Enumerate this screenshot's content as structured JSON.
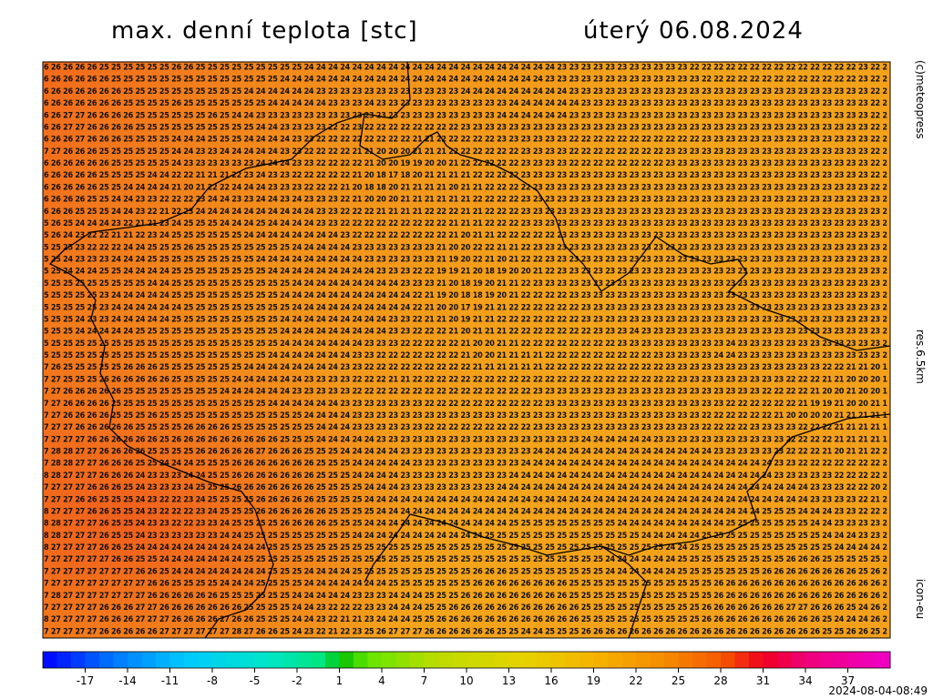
{
  "header": {
    "title": "max. denní teplota [stc]",
    "date": "úterý 06.08.2024"
  },
  "side_labels": [
    "(c)meteopress",
    "res.6.5km",
    "icon-eu"
  ],
  "footer": "2024-08-04-08:49",
  "grid_rows": [
    "6 26 26 26 26 25 25 25 25 25 25 26 26 25 25 25 25 25 25 25 25 25 24 24 24 24 24 24 24 24 24 24 24 24 24 24 24 24 24 24 24 24 24 23 23 23 23 23 23 23 23 23 23 23 22 22 22 22 22 22 22 22 22 22 22 22 22 22 23 22 2",
    "6 26 26 26 26 26 25 25 25 25 25 25 25 25 25 25 25 25 25 25 24 24 24 24 24 24 24 24 24 24 24 24 24 24 24 24 24 24 24 24 24 24 23 23 23 23 23 23 23 23 23 23 23 23 23 22 22 22 22 22 22 22 22 22 22 22 22 22 23 22 2",
    "6 26 26 26 26 26 26 25 25 25 25 25 25 25 25 25 25 24 24 24 24 24 24 23 23 23 23 23 23 23 23 23 23 23 23 24 24 24 24 24 24 24 24 24 23 23 23 23 23 23 23 23 23 23 23 23 23 23 23 23 23 23 23 23 23 23 23 23 23 22 2",
    "6 26 26 26 26 26 26 25 25 25 25 26 25 25 25 25 25 25 25 24 24 24 24 24 23 23 23 24 23 23 23 23 23 23 23 23 23 23 23 24 24 24 24 24 24 23 23 23 23 23 23 23 23 23 23 23 23 23 23 23 23 23 23 23 23 23 23 23 23 22 2",
    "6 26 27 27 26 26 26 26 25 25 25 25 25 25 26 25 24 24 23 23 23 23 23 23 23 23 23 23 23 23 23 23 23 23 23 23 23 23 24 24 24 24 24 24 23 23 23 23 23 23 23 23 23 23 23 23 23 23 23 23 23 23 23 23 23 23 23 23 23 22 2",
    "6 26 27 27 26 26 26 26 25 25 25 25 25 25 25 25 25 25 24 24 23 23 23 23 22 22 23 22 22 22 22 22 22 22 22 23 23 23 23 23 23 23 23 23 23 23 23 23 23 23 23 23 23 23 23 23 23 23 23 23 23 23 23 23 23 23 23 23 23 22 2",
    "6 26 26 27 26 26 26 25 25 25 25 24 24 24 25 25 25 24 24 24 24 23 23 22 22 22 22 22 22 22 22 21 21 22 22 22 22 22 23 23 23 23 23 23 22 22 22 22 22 22 22 22 22 22 22 23 23 23 23 23 23 23 23 23 23 23 23 23 23 22 2",
    "7 27 26 26 26 25 25 25 25 25 25 24 24 23 23 24 24 24 24 24 23 23 22 22 22 22 21 21 20 20 20 21 21 21 22 22 22 22 22 22 23 23 23 23 22 22 22 22 22 22 22 22 23 23 23 23 23 23 23 23 23 23 23 23 23 23 23 23 23 22 2",
    "6 26 26 26 26 26 25 25 25 25 25 24 23 23 23 23 23 23 24 24 24 23 23 22 22 22 22 21 20 20 19 19 20 20 21 22 22 22 22 22 23 23 23 23 22 22 22 22 22 22 22 22 23 23 23 23 23 23 23 23 23 23 23 23 23 23 23 23 23 22 2",
    "6 26 26 26 26 25 25 25 25 24 24 22 22 21 21 21 22 23 24 23 23 22 22 22 22 22 21 20 18 17 18 20 21 21 21 21 22 22 22 22 23 23 23 23 23 23 23 23 23 23 23 23 23 23 23 23 23 23 23 23 23 23 23 23 23 23 23 23 23 22 2",
    "6 26 26 26 26 25 25 24 24 24 24 21 20 21 22 22 24 24 24 23 23 23 22 22 22 21 20 18 18 20 21 21 21 21 20 21 21 22 22 22 22 23 23 23 23 23 23 23 23 23 23 23 23 23 23 23 23 23 23 23 23 23 23 23 23 23 23 23 23 22 2",
    "6 26 26 26 25 25 24 24 23 23 22 22 22 23 24 24 23 23 24 24 23 24 23 23 23 22 21 20 20 20 21 21 21 21 21 21 22 22 22 22 23 23 23 23 23 23 23 23 23 23 23 23 23 23 23 23 23 23 23 23 23 23 23 23 23 23 23 23 23 23 2",
    "6 26 26 25 25 25 24 24 23 22 21 22 23 24 24 24 24 24 24 24 24 24 24 23 23 22 22 22 21 21 21 21 22 22 22 21 21 22 22 22 23 23 23 23 23 23 23 23 23 23 23 23 23 23 23 23 23 23 23 23 23 23 23 23 23 23 23 23 23 23 2",
    "5 26 25 24 24 24 23 22 21 21 23 24 25 25 25 24 24 24 25 24 24 24 24 23 23 22 22 22 22 22 22 22 22 22 21 21 21 22 22 22 23 23 23 23 23 23 23 23 23 23 23 23 23 23 23 23 23 23 23 23 23 23 23 23 23 23 23 23 23 23 2",
    "5 26 24 23 22 22 21 21 22 23 24 25 25 25 25 25 25 24 24 24 24 24 24 24 24 23 22 22 22 22 22 22 22 22 21 20 21 21 22 22 22 22 22 23 23 23 23 23 23 23 23 23 23 23 23 23 23 23 23 23 23 23 23 23 23 23 23 23 23 23 2",
    "5 25 25 23 22 22 22 24 24 25 25 25 26 25 25 25 25 25 25 25 25 24 24 24 24 24 23 23 23 23 23 23 23 21 20 20 22 22 21 21 22 23 23 23 23 23 23 23 23 23 23 23 23 23 23 23 23 23 23 23 23 23 23 23 23 23 23 23 23 23 2",
    "5 25 24 23 23 23 24 24 24 25 25 25 25 25 25 25 25 25 24 24 24 24 24 24 24 24 24 23 23 23 23 23 23 21 19 20 22 21 20 21 22 22 23 23 23 23 23 23 23 23 23 23 23 23 23 23 23 23 23 23 23 23 23 23 23 23 23 23 23 23 2",
    "5 25 24 24 24 25 25 24 24 24 24 25 25 25 25 25 25 25 25 24 24 24 24 24 24 24 24 24 23 23 23 22 22 19 19 21 20 18 19 20 20 21 22 23 23 23 23 23 23 23 23 23 23 23 23 23 23 23 23 23 23 23 23 23 23 23 23 23 23 23 2",
    "5 25 25 25 25 25 25 25 25 24 24 25 25 25 25 25 25 25 25 25 25 24 24 24 24 24 24 24 24 24 23 23 23 21 20 18 19 20 21 21 22 23 23 23 23 23 23 23 23 23 23 23 23 23 23 23 23 23 23 23 23 23 23 23 23 23 23 23 23 23 2",
    "5 25 25 25 25 23 24 24 24 24 24 25 25 25 25 25 25 25 25 25 24 24 24 24 24 24 24 24 24 24 24 22 21 19 20 18 18 19 20 21 22 22 22 22 23 23 23 23 23 23 23 23 23 23 23 23 23 23 23 23 23 23 23 23 23 23 23 23 23 23 2",
    "5 25 25 25 25 23 24 24 24 24 24 24 25 25 25 25 25 25 25 25 25 24 24 24 24 24 24 24 24 24 24 22 21 20 20 17 19 21 21 22 22 22 22 22 22 23 23 23 23 23 23 23 23 23 23 23 23 23 23 23 23 23 23 23 23 23 23 23 23 23 2",
    "5 25 25 24 23 23 24 24 24 24 24 25 25 25 25 25 25 25 25 25 24 24 24 24 24 24 24 24 24 23 23 22 21 21 20 19 21 21 22 22 22 22 22 22 22 23 23 23 23 23 23 23 23 23 23 23 23 23 23 23 23 23 23 23 23 23 23 23 23 23 2",
    "5 25 25 24 24 24 24 24 25 25 25 25 25 25 25 25 25 25 25 25 24 24 24 24 24 24 24 24 24 23 23 22 22 22 21 20 21 21 21 22 22 22 22 22 22 22 23 23 23 24 23 23 23 23 23 23 23 23 23 23 23 23 23 23 23 23 23 23 23 23 2",
    "5 25 25 25 25 25 25 25 25 25 25 25 25 25 25 25 25 25 25 25 24 24 24 24 24 24 24 23 23 23 22 22 22 22 22 21 20 20 21 21 22 22 22 22 22 22 22 22 23 23 23 23 23 23 23 23 23 24 23 23 23 23 23 23 23 23 23 23 23 23 2",
    "5 25 25 25 25 25 25 25 25 25 25 25 25 25 25 25 25 25 25 24 24 24 24 24 24 24 23 23 22 22 22 22 22 22 22 21 20 20 21 21 21 21 22 22 22 22 22 22 22 22 22 23 23 23 23 23 24 24 23 23 23 23 23 23 23 23 23 23 23 23 2",
    "7 26 25 25 25 25 25 26 26 26 25 25 25 25 25 25 25 24 24 24 24 24 24 24 24 23 23 22 22 22 22 22 22 22 22 22 21 21 21 21 21 21 22 22 22 22 22 22 22 22 22 22 23 23 23 23 23 23 23 23 23 23 23 23 23 22 22 21 21 20 1",
    "7 27 25 25 25 26 26 26 26 26 26 25 25 25 25 25 24 24 24 24 24 24 23 23 23 23 22 22 22 21 21 22 22 22 22 22 22 22 22 22 22 22 22 22 22 22 22 22 22 22 22 22 22 23 23 23 23 23 23 23 23 23 22 22 22 21 21 20 20 20 1",
    "7 27 26 26 26 26 26 25 25 25 25 25 25 25 25 24 24 24 24 24 24 23 23 23 23 23 22 22 22 22 22 22 22 22 22 22 22 22 22 22 22 23 23 23 23 23 23 23 23 23 23 23 23 23 23 23 23 23 23 23 22 22 22 22 21 20 20 21 20 20 1",
    "7 27 26 26 26 26 25 25 25 25 25 25 25 25 25 25 25 25 25 24 24 24 24 24 24 23 23 23 23 23 23 23 22 22 22 22 22 22 22 22 22 22 23 23 23 23 23 23 23 23 23 23 23 23 23 23 23 22 22 22 22 22 22 21 19 19 21 20 20 21 1",
    "7 27 26 26 26 26 25 25 25 26 25 25 25 25 25 25 25 25 25 25 25 25 24 24 24 24 23 23 23 23 23 23 23 23 23 23 23 23 23 23 23 23 23 23 23 23 23 23 23 23 23 23 23 23 23 22 22 22 22 22 22 21 20 20 20 20 21 21 21 21 1",
    "7 27 27 26 26 26 26 26 25 25 25 25 26 26 26 26 25 25 25 25 25 25 25 24 24 24 23 23 23 23 23 23 22 22 22 22 22 22 22 22 22 23 23 23 23 23 23 23 23 23 23 23 23 23 23 22 22 22 22 23 23 23 23 22 22 22 21 21 21 21 1",
    "7 27 27 27 26 26 26 26 26 26 25 26 26 26 26 26 26 26 26 26 25 25 25 24 24 24 24 24 23 23 23 23 23 23 23 23 23 23 23 23 23 23 23 23 23 24 24 24 24 24 24 23 23 23 23 23 23 23 23 23 23 23 22 22 22 22 21 21 21 21 1",
    "7 28 28 27 27 26 26 26 26 25 25 25 25 26 26 26 26 26 27 26 26 26 25 25 25 24 24 24 24 24 23 23 23 23 23 23 23 23 23 23 23 24 24 24 24 24 24 24 24 24 24 24 24 24 24 24 23 23 23 23 23 23 22 22 22 21 20 21 21 22 2",
    "7 28 28 27 27 26 26 26 25 25 24 24 24 25 25 25 26 26 26 26 26 26 26 25 25 25 24 24 24 24 24 23 23 23 23 23 23 23 23 23 24 24 24 24 24 24 24 24 24 24 24 24 24 24 24 24 24 24 24 24 24 23 23 22 22 22 22 22 22 22 2",
    "8 28 27 27 27 26 26 26 24 23 23 23 24 24 25 25 26 26 26 26 26 26 26 25 25 25 24 24 24 24 23 23 23 23 23 23 23 23 23 24 24 24 24 24 24 24 24 24 24 24 24 24 24 24 24 24 24 24 24 24 24 23 23 23 23 23 22 22 22 22 2",
    "7 27 27 27 26 26 26 25 24 23 23 23 24 25 25 25 26 26 26 26 26 26 26 25 25 25 25 24 24 24 23 23 23 23 23 23 23 23 24 24 24 24 24 24 24 24 24 24 24 24 24 24 24 24 24 24 24 24 24 24 24 24 24 24 23 23 23 22 22 20 2",
    "7 27 27 26 26 25 25 25 24 23 22 22 23 24 25 25 25 25 26 26 26 26 26 25 25 25 25 24 24 24 24 24 24 24 24 24 24 24 24 24 24 24 24 24 24 24 24 24 24 24 24 24 24 24 24 24 24 24 24 24 24 24 24 24 23 23 23 23 22 21 2",
    "8 27 27 27 26 26 25 25 24 23 22 22 22 23 24 25 25 25 26 26 26 26 26 26 25 25 25 25 24 24 24 24 24 24 24 24 24 24 24 24 24 24 24 24 24 24 24 24 24 24 24 24 24 24 24 24 24 24 24 24 25 25 25 24 24 24 23 23 22 22 2",
    "8 28 27 27 27 26 25 25 24 23 23 22 22 23 23 24 25 25 25 25 26 26 26 26 25 25 25 24 24 24 24 24 24 24 24 24 24 24 24 25 25 25 25 25 25 25 25 25 24 24 24 24 24 24 24 24 24 25 25 25 25 25 25 25 24 24 23 23 23 23 2",
    "8 28 27 27 27 26 25 25 24 23 23 23 23 23 23 24 24 25 25 25 25 25 25 25 25 25 24 24 24 24 24 24 24 24 24 24 24 25 25 25 25 25 25 25 25 25 25 25 25 25 24 24 24 24 24 25 25 25 25 25 25 25 25 25 25 24 24 24 23 23 2",
    "8 27 27 27 27 26 26 25 24 24 24 24 24 24 24 24 24 24 24 25 25 25 25 25 25 25 25 25 25 25 25 25 25 25 25 25 25 25 25 25 25 25 25 25 25 25 25 25 25 25 25 25 24 24 25 25 25 25 25 25 25 25 25 25 25 25 24 24 24 24 2",
    "7 27 27 27 27 27 26 26 25 25 24 24 24 24 24 24 24 25 25 25 25 25 25 25 25 25 25 25 25 25 25 25 25 25 25 25 25 25 25 25 25 25 25 25 25 25 25 24 24 24 24 24 24 25 25 25 25 25 25 25 25 25 26 26 26 25 25 25 25 25 2",
    "7 27 27 27 27 27 27 27 26 26 25 24 24 24 24 24 24 24 24 25 25 25 24 24 24 24 25 25 25 25 25 25 25 25 25 25 26 26 26 25 25 25 25 25 25 25 25 24 24 24 24 24 24 25 25 25 25 25 25 25 26 26 26 26 26 26 26 26 25 26 2",
    "7 27 27 27 27 27 27 27 27 26 26 25 25 25 25 24 24 24 25 25 25 25 24 24 24 24 24 24 24 25 25 25 25 25 25 25 26 26 26 26 26 26 26 26 25 25 25 25 25 25 25 25 25 25 25 25 26 26 26 26 26 26 26 26 26 26 26 26 26 26 2",
    "7 28 27 27 27 27 27 27 27 26 26 26 26 26 26 25 25 25 25 25 25 24 24 24 24 24 23 23 23 24 24 24 25 25 25 26 26 26 26 26 26 26 26 26 25 25 25 25 25 25 25 25 25 25 25 25 26 26 26 26 26 26 26 26 26 26 26 26 26 26 2",
    "7 27 27 27 27 26 26 26 27 27 26 26 26 26 26 26 26 25 25 25 25 24 24 23 22 22 22 23 23 24 24 24 25 25 26 26 26 26 26 26 26 26 26 26 26 25 25 25 25 25 25 25 25 25 25 26 26 26 26 26 26 26 27 27 26 26 26 25 24 26 2",
    "8 27 27 27 27 26 26 26 27 27 27 26 26 26 26 27 26 26 25 25 25 24 24 23 22 21 21 23 24 24 24 25 25 26 26 26 26 26 26 26 26 26 26 26 26 25 25 25 25 25 25 25 25 25 25 26 26 26 26 26 26 26 26 26 26 25 24 24 24 26 2",
    "7 27 27 27 27 26 26 26 26 26 27 27 27 27 27 27 28 27 26 26 25 24 23 22 21 22 23 25 26 27 27 27 26 26 26 26 26 26 25 25 24 24 25 25 25 26 26 26 26 26 26 26 26 26 26 26 26 26 26 26 26 26 26 26 26 25 25 26 26 25 2"
  ],
  "colorbar": {
    "range": [
      -20,
      40
    ],
    "ticks": [
      -17,
      -14,
      -11,
      -8,
      -5,
      -2,
      1,
      4,
      7,
      10,
      13,
      16,
      19,
      22,
      25,
      28,
      31,
      34,
      37
    ]
  }
}
